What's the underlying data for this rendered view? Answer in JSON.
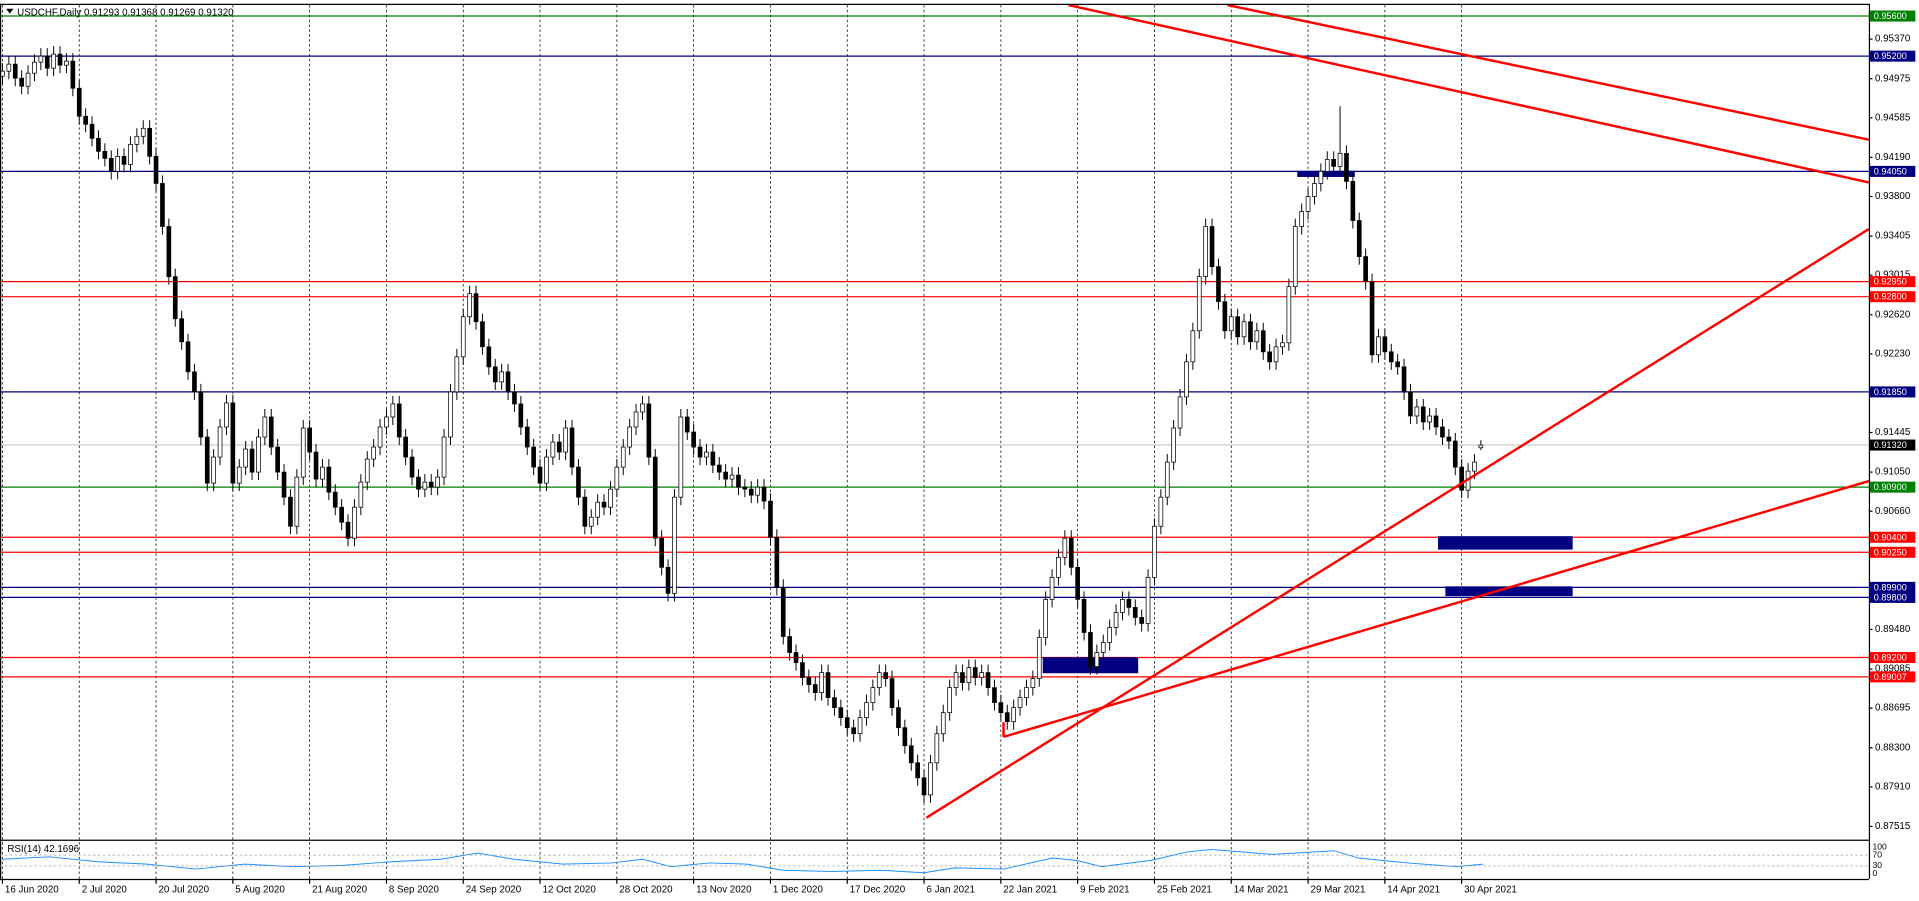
{
  "header": {
    "symbol": "USDCHF,Daily",
    "open": "0.91293",
    "high": "0.91368",
    "low": "0.91269",
    "close": "0.91320"
  },
  "chart_data": {
    "type": "candlestick",
    "categories": [
      "16 Jun 2020",
      null,
      null,
      null,
      null,
      null,
      null,
      null,
      null,
      null,
      null,
      null,
      "2 Jul 2020",
      null,
      null,
      null,
      null,
      null,
      null,
      null,
      null,
      null,
      null,
      null,
      "20 Jul 2020",
      null,
      null,
      null,
      null,
      null,
      null,
      null,
      null,
      null,
      null,
      null,
      "5 Aug 2020",
      null,
      null,
      null,
      null,
      null,
      null,
      null,
      null,
      null,
      null,
      null,
      "21 Aug 2020",
      null,
      null,
      null,
      null,
      null,
      null,
      null,
      null,
      null,
      null,
      null,
      "8 Sep 2020",
      null,
      null,
      null,
      null,
      null,
      null,
      null,
      null,
      null,
      null,
      null,
      "24 Sep 2020",
      null,
      null,
      null,
      null,
      null,
      null,
      null,
      null,
      null,
      null,
      null,
      "12 Oct 2020",
      null,
      null,
      null,
      null,
      null,
      null,
      null,
      null,
      null,
      null,
      null,
      "28 Oct 2020",
      null,
      null,
      null,
      null,
      null,
      null,
      null,
      null,
      null,
      null,
      null,
      "13 Nov 2020",
      null,
      null,
      null,
      null,
      null,
      null,
      null,
      null,
      null,
      null,
      null,
      "1 Dec 2020",
      null,
      null,
      null,
      null,
      null,
      null,
      null,
      null,
      null,
      null,
      null,
      "17 Dec 2020",
      null,
      null,
      null,
      null,
      null,
      null,
      null,
      null,
      null,
      null,
      null,
      "6 Jan 2021",
      null,
      null,
      null,
      null,
      null,
      null,
      null,
      null,
      null,
      null,
      null,
      "22 Jan 2021",
      null,
      null,
      null,
      null,
      null,
      null,
      null,
      null,
      null,
      null,
      null,
      "9 Feb 2021",
      null,
      null,
      null,
      null,
      null,
      null,
      null,
      null,
      null,
      null,
      null,
      "25 Feb 2021",
      null,
      null,
      null,
      null,
      null,
      null,
      null,
      null,
      null,
      null,
      null,
      "14 Mar 2021",
      null,
      null,
      null,
      null,
      null,
      null,
      null,
      null,
      null,
      null,
      null,
      "29 Mar 2021",
      null,
      null,
      null,
      null,
      null,
      null,
      null,
      null,
      null,
      null,
      null,
      "14 Apr 2021",
      null,
      null,
      null,
      null,
      null,
      null,
      null,
      null,
      null,
      null,
      null,
      "30 Apr 2021",
      null,
      null,
      null
    ],
    "open": [
      0.95,
      0.9505,
      0.9512,
      0.9498,
      0.949,
      0.9503,
      0.9514,
      0.952,
      0.9508,
      0.9522,
      0.9511,
      0.9515,
      0.9488,
      0.946,
      0.9452,
      0.9438,
      0.9425,
      0.9418,
      0.9405,
      0.942,
      0.9412,
      0.9432,
      0.944,
      0.9448,
      0.942,
      0.9393,
      0.935,
      0.93,
      0.9258,
      0.9235,
      0.9205,
      0.9185,
      0.914,
      0.9094,
      0.912,
      0.915,
      0.9174,
      0.9094,
      0.911,
      0.9128,
      0.9105,
      0.914,
      0.916,
      0.913,
      0.9105,
      0.908,
      0.9051,
      0.91,
      0.9149,
      0.9125,
      0.9098,
      0.911,
      0.9085,
      0.907,
      0.9055,
      0.9039,
      0.907,
      0.9095,
      0.9118,
      0.913,
      0.915,
      0.916,
      0.9173,
      0.914,
      0.912,
      0.91,
      0.9088,
      0.9095,
      0.909,
      0.91,
      0.914,
      0.9185,
      0.922,
      0.926,
      0.9283,
      0.9255,
      0.923,
      0.921,
      0.9195,
      0.9205,
      0.9185,
      0.9173,
      0.915,
      0.913,
      0.911,
      0.9094,
      0.912,
      0.9135,
      0.9125,
      0.9149,
      0.911,
      0.908,
      0.9051,
      0.906,
      0.9075,
      0.907,
      0.9088,
      0.911,
      0.913,
      0.915,
      0.9165,
      0.9173,
      0.912,
      0.9039,
      0.901,
      0.8984,
      0.908,
      0.916,
      0.9145,
      0.913,
      0.912,
      0.9125,
      0.9112,
      0.9105,
      0.9098,
      0.9102,
      0.909,
      0.9088,
      0.9082,
      0.909,
      0.9076,
      0.904,
      0.899,
      0.8941,
      0.8925,
      0.8915,
      0.89,
      0.8893,
      0.8885,
      0.8905,
      0.888,
      0.887,
      0.886,
      0.885,
      0.8844,
      0.886,
      0.8875,
      0.889,
      0.8905,
      0.8899,
      0.887,
      0.885,
      0.8832,
      0.8815,
      0.88,
      0.8783,
      0.8815,
      0.8844,
      0.8865,
      0.889,
      0.8905,
      0.8895,
      0.891,
      0.89,
      0.8905,
      0.889,
      0.8875,
      0.8865,
      0.8856,
      0.887,
      0.888,
      0.889,
      0.8899,
      0.894,
      0.8978,
      0.9,
      0.902,
      0.9039,
      0.901,
      0.8978,
      0.8945,
      0.8911,
      0.8925,
      0.8935,
      0.895,
      0.8965,
      0.8978,
      0.897,
      0.896,
      0.8954,
      0.9,
      0.9051,
      0.908,
      0.9115,
      0.9149,
      0.918,
      0.9215,
      0.9246,
      0.93,
      0.935,
      0.931,
      0.9275,
      0.9246,
      0.926,
      0.924,
      0.9255,
      0.9235,
      0.9246,
      0.9225,
      0.9215,
      0.923,
      0.9234,
      0.929,
      0.935,
      0.9365,
      0.938,
      0.9393,
      0.9405,
      0.9417,
      0.941,
      0.9423,
      0.9395,
      0.9356,
      0.932,
      0.9295,
      0.9222,
      0.924,
      0.9225,
      0.9215,
      0.921,
      0.9185,
      0.9161,
      0.917,
      0.9155,
      0.9161,
      0.915,
      0.914,
      0.9136,
      0.911,
      0.9087,
      0.9106,
      0.91293
    ],
    "high": [
      0.9513,
      0.952,
      0.952,
      0.9506,
      0.9511,
      0.9522,
      0.9528,
      0.9528,
      0.953,
      0.953,
      0.9523,
      0.9523,
      0.9496,
      0.9468,
      0.946,
      0.9446,
      0.9433,
      0.9426,
      0.9428,
      0.9428,
      0.944,
      0.9448,
      0.9456,
      0.9456,
      0.9428,
      0.9401,
      0.9358,
      0.9308,
      0.9266,
      0.9243,
      0.9213,
      0.9193,
      0.9148,
      0.9128,
      0.9158,
      0.9182,
      0.9182,
      0.9118,
      0.9136,
      0.9136,
      0.9148,
      0.9168,
      0.9168,
      0.9138,
      0.9113,
      0.9088,
      0.9108,
      0.9157,
      0.9157,
      0.9133,
      0.9118,
      0.9118,
      0.9093,
      0.9078,
      0.9063,
      0.9078,
      0.9103,
      0.9126,
      0.9138,
      0.9158,
      0.9168,
      0.9181,
      0.9181,
      0.9148,
      0.9128,
      0.9108,
      0.9103,
      0.9103,
      0.9108,
      0.9148,
      0.9193,
      0.9228,
      0.9268,
      0.9291,
      0.9291,
      0.9263,
      0.9238,
      0.9218,
      0.9213,
      0.9213,
      0.9193,
      0.9181,
      0.9158,
      0.9138,
      0.9118,
      0.9128,
      0.9143,
      0.9143,
      0.9157,
      0.9157,
      0.9118,
      0.9088,
      0.9068,
      0.9083,
      0.9083,
      0.9096,
      0.9118,
      0.9138,
      0.9158,
      0.9173,
      0.9181,
      0.9181,
      0.9128,
      0.9047,
      0.9018,
      0.9088,
      0.9168,
      0.9168,
      0.9153,
      0.9138,
      0.9133,
      0.9133,
      0.912,
      0.9113,
      0.911,
      0.911,
      0.9098,
      0.9096,
      0.9098,
      0.9098,
      0.9084,
      0.9048,
      0.8998,
      0.8949,
      0.8933,
      0.8923,
      0.8908,
      0.8901,
      0.8913,
      0.8913,
      0.8888,
      0.8878,
      0.8868,
      0.8858,
      0.8868,
      0.8883,
      0.8898,
      0.8913,
      0.8913,
      0.8907,
      0.8878,
      0.8858,
      0.884,
      0.8823,
      0.8808,
      0.8823,
      0.8852,
      0.8873,
      0.8898,
      0.8913,
      0.8913,
      0.8918,
      0.8918,
      0.8913,
      0.8913,
      0.8898,
      0.8883,
      0.8873,
      0.8878,
      0.8888,
      0.8898,
      0.8907,
      0.8948,
      0.8986,
      0.9008,
      0.9028,
      0.9047,
      0.9047,
      0.9018,
      0.8986,
      0.8953,
      0.8933,
      0.8943,
      0.8958,
      0.8973,
      0.8986,
      0.8986,
      0.8978,
      0.8968,
      0.9008,
      0.9059,
      0.9088,
      0.9123,
      0.9157,
      0.9188,
      0.9223,
      0.9254,
      0.9308,
      0.9358,
      0.9358,
      0.9318,
      0.9283,
      0.9268,
      0.9268,
      0.9263,
      0.9263,
      0.9254,
      0.9254,
      0.9233,
      0.9238,
      0.9242,
      0.9298,
      0.9358,
      0.9373,
      0.9388,
      0.9401,
      0.9413,
      0.9425,
      0.9425,
      0.947,
      0.9431,
      0.9403,
      0.9364,
      0.9328,
      0.9303,
      0.9248,
      0.9248,
      0.9233,
      0.9223,
      0.9218,
      0.9193,
      0.9178,
      0.9178,
      0.9169,
      0.9169,
      0.9158,
      0.9148,
      0.9144,
      0.9118,
      0.9114,
      0.9123,
      0.91368
    ],
    "low": [
      0.9492,
      0.9497,
      0.949,
      0.9482,
      0.9482,
      0.9495,
      0.9506,
      0.95,
      0.95,
      0.9503,
      0.9503,
      0.948,
      0.9452,
      0.9444,
      0.943,
      0.9417,
      0.941,
      0.9397,
      0.9397,
      0.9404,
      0.9404,
      0.9424,
      0.9432,
      0.9412,
      0.9385,
      0.9342,
      0.9292,
      0.925,
      0.9227,
      0.9197,
      0.9177,
      0.9132,
      0.9086,
      0.9086,
      0.9112,
      0.9142,
      0.9086,
      0.9086,
      0.9102,
      0.9097,
      0.9097,
      0.9132,
      0.9122,
      0.9097,
      0.9072,
      0.9043,
      0.9043,
      0.9092,
      0.9117,
      0.909,
      0.909,
      0.9077,
      0.9062,
      0.9047,
      0.9031,
      0.9031,
      0.9062,
      0.9087,
      0.911,
      0.9122,
      0.9142,
      0.9152,
      0.9132,
      0.9112,
      0.9092,
      0.908,
      0.908,
      0.9082,
      0.9082,
      0.9092,
      0.9132,
      0.9177,
      0.9212,
      0.9252,
      0.9247,
      0.9222,
      0.9202,
      0.9187,
      0.9187,
      0.9177,
      0.9165,
      0.9142,
      0.9122,
      0.9102,
      0.9086,
      0.9086,
      0.9112,
      0.9117,
      0.9117,
      0.9102,
      0.9072,
      0.9043,
      0.9043,
      0.9052,
      0.9062,
      0.9062,
      0.908,
      0.9102,
      0.9122,
      0.9142,
      0.9157,
      0.9112,
      0.9031,
      0.9002,
      0.8976,
      0.8976,
      0.9072,
      0.9137,
      0.9122,
      0.9112,
      0.9112,
      0.9104,
      0.9097,
      0.909,
      0.909,
      0.9082,
      0.908,
      0.9074,
      0.9074,
      0.9068,
      0.9032,
      0.8982,
      0.8933,
      0.8917,
      0.8907,
      0.8892,
      0.8885,
      0.8877,
      0.8877,
      0.8872,
      0.8862,
      0.8852,
      0.8842,
      0.8836,
      0.8836,
      0.8852,
      0.8867,
      0.8882,
      0.8891,
      0.8862,
      0.8842,
      0.8824,
      0.8807,
      0.8792,
      0.8775,
      0.8775,
      0.8807,
      0.8836,
      0.8857,
      0.8882,
      0.8887,
      0.8887,
      0.8892,
      0.8892,
      0.8882,
      0.8867,
      0.8857,
      0.8848,
      0.8848,
      0.8862,
      0.8872,
      0.8882,
      0.8891,
      0.8932,
      0.897,
      0.8992,
      0.9012,
      0.9002,
      0.897,
      0.8937,
      0.8903,
      0.8903,
      0.8917,
      0.8927,
      0.8942,
      0.8957,
      0.8962,
      0.8952,
      0.8946,
      0.8946,
      0.8992,
      0.9043,
      0.9072,
      0.9107,
      0.9141,
      0.9172,
      0.9207,
      0.9238,
      0.9292,
      0.9302,
      0.9267,
      0.9238,
      0.9238,
      0.9232,
      0.9232,
      0.9227,
      0.9227,
      0.9217,
      0.9207,
      0.9207,
      0.9222,
      0.9226,
      0.9282,
      0.9342,
      0.9357,
      0.9372,
      0.9385,
      0.9397,
      0.9402,
      0.9402,
      0.9387,
      0.9348,
      0.9312,
      0.9287,
      0.9214,
      0.9214,
      0.9217,
      0.9207,
      0.9202,
      0.9177,
      0.9153,
      0.9153,
      0.9147,
      0.9147,
      0.9142,
      0.9132,
      0.9128,
      0.9102,
      0.9079,
      0.9079,
      0.9098,
      0.91269
    ],
    "close": [
      0.9505,
      0.9512,
      0.9498,
      0.949,
      0.9503,
      0.9514,
      0.952,
      0.9508,
      0.9522,
      0.9511,
      0.9515,
      0.9488,
      0.946,
      0.9452,
      0.9438,
      0.9425,
      0.9418,
      0.9405,
      0.942,
      0.9412,
      0.9432,
      0.944,
      0.9448,
      0.942,
      0.9393,
      0.935,
      0.93,
      0.9258,
      0.9235,
      0.9205,
      0.9185,
      0.914,
      0.9094,
      0.912,
      0.915,
      0.9174,
      0.9094,
      0.911,
      0.9128,
      0.9105,
      0.914,
      0.916,
      0.913,
      0.9105,
      0.908,
      0.9051,
      0.91,
      0.9149,
      0.9125,
      0.9098,
      0.911,
      0.9085,
      0.907,
      0.9055,
      0.9039,
      0.907,
      0.9095,
      0.9118,
      0.913,
      0.915,
      0.916,
      0.9173,
      0.914,
      0.912,
      0.91,
      0.9088,
      0.9095,
      0.909,
      0.91,
      0.914,
      0.9185,
      0.922,
      0.926,
      0.9283,
      0.9255,
      0.923,
      0.921,
      0.9195,
      0.9205,
      0.9185,
      0.9173,
      0.915,
      0.913,
      0.911,
      0.9094,
      0.912,
      0.9135,
      0.9125,
      0.9149,
      0.911,
      0.908,
      0.9051,
      0.906,
      0.9075,
      0.907,
      0.9088,
      0.911,
      0.913,
      0.915,
      0.9165,
      0.9173,
      0.912,
      0.9039,
      0.901,
      0.8984,
      0.908,
      0.916,
      0.9145,
      0.913,
      0.912,
      0.9125,
      0.9112,
      0.9105,
      0.9098,
      0.9102,
      0.909,
      0.9088,
      0.9082,
      0.909,
      0.9076,
      0.904,
      0.899,
      0.8941,
      0.8925,
      0.8915,
      0.89,
      0.8893,
      0.8885,
      0.8905,
      0.888,
      0.887,
      0.886,
      0.885,
      0.8844,
      0.886,
      0.8875,
      0.889,
      0.8905,
      0.8899,
      0.887,
      0.885,
      0.8832,
      0.8815,
      0.88,
      0.8783,
      0.8815,
      0.8844,
      0.8865,
      0.889,
      0.8905,
      0.8895,
      0.891,
      0.89,
      0.8905,
      0.889,
      0.8875,
      0.8865,
      0.8856,
      0.887,
      0.888,
      0.889,
      0.8899,
      0.894,
      0.8978,
      0.9,
      0.902,
      0.9039,
      0.901,
      0.8978,
      0.8945,
      0.8911,
      0.8925,
      0.8935,
      0.895,
      0.8965,
      0.8978,
      0.897,
      0.896,
      0.8954,
      0.9,
      0.9051,
      0.908,
      0.9115,
      0.9149,
      0.918,
      0.9215,
      0.9246,
      0.93,
      0.935,
      0.931,
      0.9275,
      0.9246,
      0.926,
      0.924,
      0.9255,
      0.9235,
      0.9246,
      0.9225,
      0.9215,
      0.923,
      0.9234,
      0.929,
      0.935,
      0.9365,
      0.938,
      0.9393,
      0.9405,
      0.9417,
      0.941,
      0.9423,
      0.9395,
      0.9356,
      0.932,
      0.9295,
      0.9222,
      0.924,
      0.9225,
      0.9215,
      0.921,
      0.9185,
      0.9161,
      0.917,
      0.9155,
      0.9161,
      0.915,
      0.914,
      0.9136,
      0.911,
      0.9087,
      0.9106,
      0.9115,
      0.9132
    ],
    "up_color": "#ffffff",
    "down_color": "#000000",
    "outline_color": "#000000",
    "ylim": [
      0.87395,
      0.9571
    ],
    "yticks": [
      {
        "value": 0.9537,
        "label": "0.95370"
      },
      {
        "value": 0.94975,
        "label": "0.94975"
      },
      {
        "value": 0.94585,
        "label": "0.94585"
      },
      {
        "value": 0.9419,
        "label": "0.94190"
      },
      {
        "value": 0.938,
        "label": "0.93800"
      },
      {
        "value": 0.93405,
        "label": "0.93405"
      },
      {
        "value": 0.93015,
        "label": "0.93015"
      },
      {
        "value": 0.9262,
        "label": "0.92620"
      },
      {
        "value": 0.9223,
        "label": "0.92230"
      },
      {
        "value": 0.91445,
        "label": "0.91445"
      },
      {
        "value": 0.9105,
        "label": "0.91050"
      },
      {
        "value": 0.9066,
        "label": "0.90660"
      },
      {
        "value": 0.8948,
        "label": "0.89480"
      },
      {
        "value": 0.89085,
        "label": "0.89085"
      },
      {
        "value": 0.88695,
        "label": "0.88695"
      },
      {
        "value": 0.883,
        "label": "0.88300"
      },
      {
        "value": 0.8791,
        "label": "0.87910"
      },
      {
        "value": 0.87515,
        "label": "0.87515"
      }
    ],
    "levels": [
      {
        "value": 0.956,
        "label": "0.95600",
        "color": "#008000"
      },
      {
        "value": 0.952,
        "label": "0.95200",
        "color": "#000080"
      },
      {
        "value": 0.9405,
        "label": "0.94050",
        "color": "#000080"
      },
      {
        "value": 0.9295,
        "label": "0.92950",
        "color": "#ff0000"
      },
      {
        "value": 0.928,
        "label": "0.92800",
        "color": "#ff0000"
      },
      {
        "value": 0.9185,
        "label": "0.91850",
        "color": "#000080"
      },
      {
        "value": 0.909,
        "label": "0.90900",
        "color": "#008000"
      },
      {
        "value": 0.904,
        "label": "0.90400",
        "color": "#ff0000"
      },
      {
        "value": 0.9025,
        "label": "0.90250",
        "color": "#ff0000"
      },
      {
        "value": 0.899,
        "label": "0.89900",
        "color": "#000080"
      },
      {
        "value": 0.898,
        "label": "0.89800",
        "color": "#000080"
      },
      {
        "value": 0.892,
        "label": "0.89200",
        "color": "#ff0000"
      },
      {
        "value": 0.89007,
        "label": "0.89007",
        "color": "#ff0000"
      }
    ],
    "last_price": {
      "value": 0.9132,
      "label": "0.91320"
    },
    "rsi": {
      "label": "RSI(14) 42.1696",
      "ylim": [
        0,
        100
      ],
      "yticks": [
        100,
        70,
        30,
        0
      ]
    }
  }
}
